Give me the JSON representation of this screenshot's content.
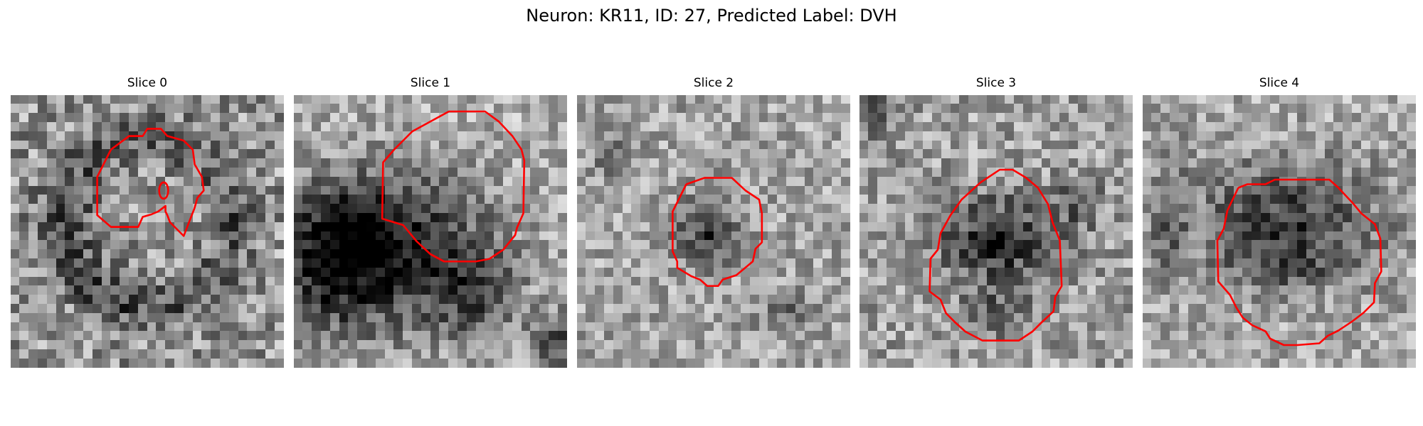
{
  "figure": {
    "title": "Neuron: KR11, ID: 27, Predicted Label: DVH"
  },
  "contour_color": "#ff0000",
  "colormap": "gray",
  "panels": [
    {
      "title": "Slice 0"
    },
    {
      "title": "Slice 1"
    },
    {
      "title": "Slice 2"
    },
    {
      "title": "Slice 3"
    },
    {
      "title": "Slice 4"
    }
  ]
}
